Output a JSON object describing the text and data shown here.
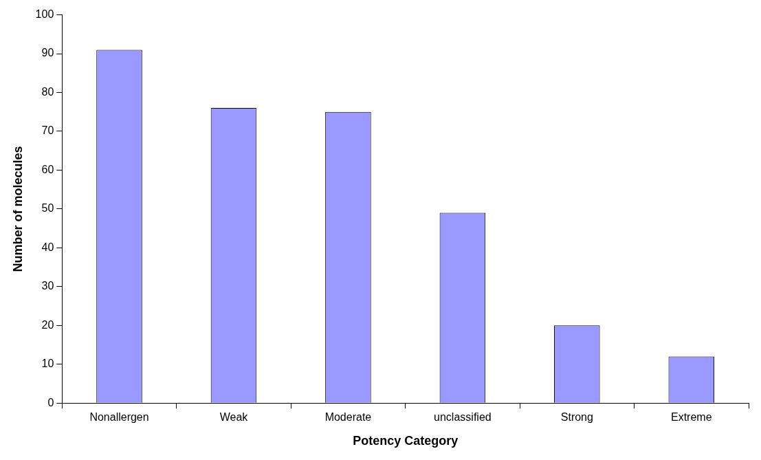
{
  "chart_data": {
    "type": "bar",
    "xlabel": "Potency Category",
    "ylabel": "Number of molecules",
    "categories": [
      "Nonallergen",
      "Weak",
      "Moderate",
      "unclassified",
      "Strong",
      "Extreme"
    ],
    "values": [
      91,
      76,
      75,
      49,
      20,
      12
    ],
    "color": "#9999ff",
    "ylim": [
      0,
      100
    ],
    "yticks": [
      0,
      10,
      20,
      30,
      40,
      50,
      60,
      70,
      80,
      90,
      100
    ],
    "grid": false,
    "legend": false
  }
}
